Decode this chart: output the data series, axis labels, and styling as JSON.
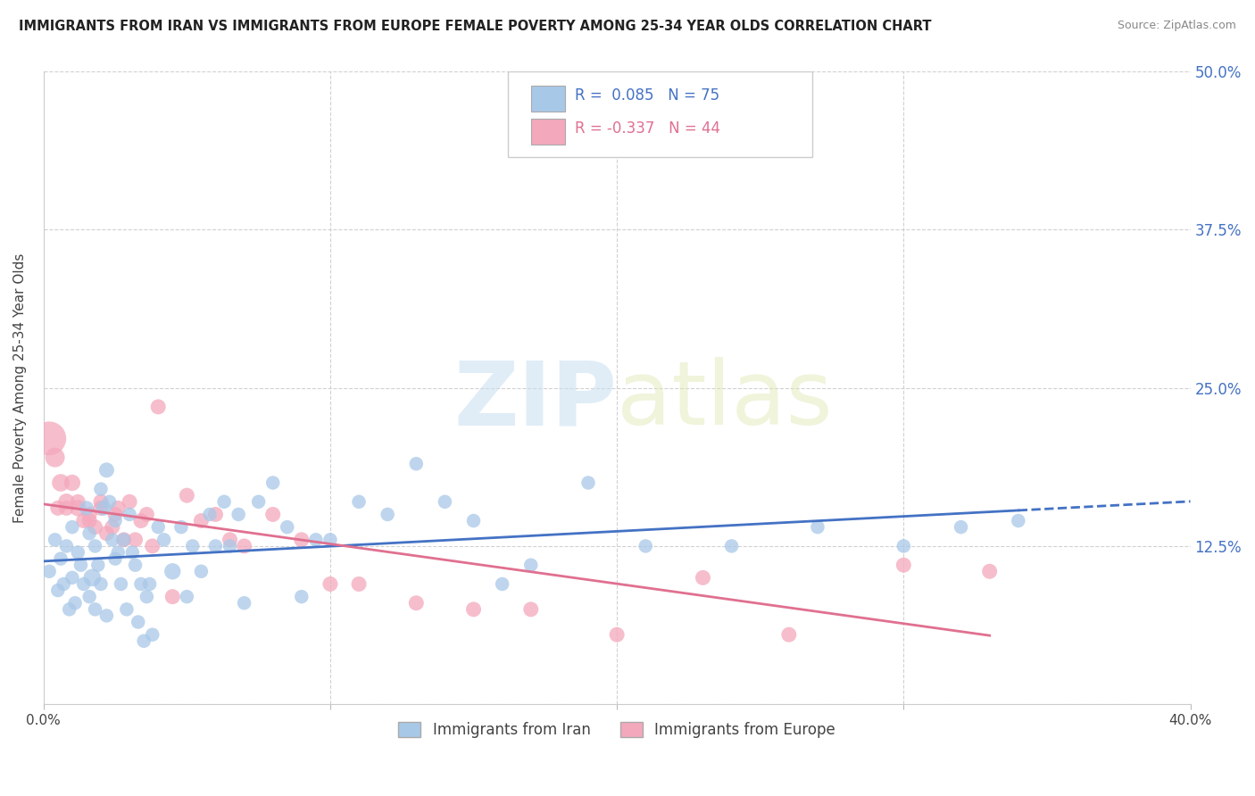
{
  "title": "IMMIGRANTS FROM IRAN VS IMMIGRANTS FROM EUROPE FEMALE POVERTY AMONG 25-34 YEAR OLDS CORRELATION CHART",
  "source": "Source: ZipAtlas.com",
  "ylabel": "Female Poverty Among 25-34 Year Olds",
  "xlim": [
    0.0,
    0.4
  ],
  "ylim": [
    0.0,
    0.5
  ],
  "yticks": [
    0.0,
    0.125,
    0.25,
    0.375,
    0.5
  ],
  "ytick_labels": [
    "",
    "12.5%",
    "25.0%",
    "37.5%",
    "50.0%"
  ],
  "xticks": [
    0.0,
    0.1,
    0.2,
    0.3,
    0.4
  ],
  "xtick_labels": [
    "0.0%",
    "",
    "",
    "",
    "40.0%"
  ],
  "iran_R": 0.085,
  "iran_N": 75,
  "europe_R": -0.337,
  "europe_N": 44,
  "iran_color": "#a8c8e8",
  "europe_color": "#f4a8bc",
  "iran_line_color": "#4472c4",
  "europe_line_color": "#e07090",
  "watermark_zip": "ZIP",
  "watermark_atlas": "atlas",
  "iran_scatter_x": [
    0.002,
    0.004,
    0.005,
    0.006,
    0.007,
    0.008,
    0.009,
    0.01,
    0.01,
    0.011,
    0.012,
    0.013,
    0.014,
    0.015,
    0.016,
    0.016,
    0.017,
    0.018,
    0.018,
    0.019,
    0.02,
    0.02,
    0.021,
    0.022,
    0.022,
    0.023,
    0.024,
    0.025,
    0.025,
    0.026,
    0.027,
    0.028,
    0.029,
    0.03,
    0.031,
    0.032,
    0.033,
    0.034,
    0.035,
    0.036,
    0.037,
    0.038,
    0.04,
    0.042,
    0.045,
    0.048,
    0.05,
    0.052,
    0.055,
    0.058,
    0.06,
    0.063,
    0.065,
    0.068,
    0.07,
    0.075,
    0.08,
    0.085,
    0.09,
    0.095,
    0.1,
    0.11,
    0.12,
    0.13,
    0.14,
    0.15,
    0.16,
    0.17,
    0.19,
    0.21,
    0.24,
    0.27,
    0.3,
    0.32,
    0.34
  ],
  "iran_scatter_y": [
    0.105,
    0.13,
    0.09,
    0.115,
    0.095,
    0.125,
    0.075,
    0.1,
    0.14,
    0.08,
    0.12,
    0.11,
    0.095,
    0.155,
    0.085,
    0.135,
    0.1,
    0.125,
    0.075,
    0.11,
    0.17,
    0.095,
    0.155,
    0.185,
    0.07,
    0.16,
    0.13,
    0.115,
    0.145,
    0.12,
    0.095,
    0.13,
    0.075,
    0.15,
    0.12,
    0.11,
    0.065,
    0.095,
    0.05,
    0.085,
    0.095,
    0.055,
    0.14,
    0.13,
    0.105,
    0.14,
    0.085,
    0.125,
    0.105,
    0.15,
    0.125,
    0.16,
    0.125,
    0.15,
    0.08,
    0.16,
    0.175,
    0.14,
    0.085,
    0.13,
    0.13,
    0.16,
    0.15,
    0.19,
    0.16,
    0.145,
    0.095,
    0.11,
    0.175,
    0.125,
    0.125,
    0.14,
    0.125,
    0.14,
    0.145
  ],
  "iran_scatter_sizes": [
    50,
    50,
    50,
    50,
    50,
    50,
    50,
    50,
    50,
    50,
    50,
    50,
    50,
    55,
    50,
    50,
    80,
    50,
    50,
    50,
    50,
    50,
    60,
    60,
    50,
    50,
    50,
    50,
    50,
    50,
    50,
    50,
    50,
    50,
    50,
    50,
    50,
    50,
    50,
    50,
    50,
    50,
    50,
    50,
    70,
    50,
    50,
    50,
    50,
    50,
    50,
    50,
    50,
    50,
    50,
    50,
    50,
    50,
    50,
    50,
    50,
    50,
    50,
    50,
    50,
    50,
    50,
    50,
    50,
    50,
    50,
    50,
    50,
    50,
    50
  ],
  "europe_scatter_x": [
    0.002,
    0.004,
    0.006,
    0.008,
    0.01,
    0.012,
    0.014,
    0.016,
    0.018,
    0.02,
    0.022,
    0.024,
    0.026,
    0.028,
    0.03,
    0.032,
    0.034,
    0.036,
    0.038,
    0.04,
    0.045,
    0.05,
    0.055,
    0.06,
    0.065,
    0.07,
    0.08,
    0.09,
    0.1,
    0.11,
    0.13,
    0.15,
    0.17,
    0.2,
    0.23,
    0.26,
    0.3,
    0.33,
    0.005,
    0.008,
    0.012,
    0.016,
    0.02,
    0.025
  ],
  "europe_scatter_y": [
    0.21,
    0.195,
    0.175,
    0.16,
    0.175,
    0.155,
    0.145,
    0.145,
    0.14,
    0.16,
    0.135,
    0.14,
    0.155,
    0.13,
    0.16,
    0.13,
    0.145,
    0.15,
    0.125,
    0.235,
    0.085,
    0.165,
    0.145,
    0.15,
    0.13,
    0.125,
    0.15,
    0.13,
    0.095,
    0.095,
    0.08,
    0.075,
    0.075,
    0.055,
    0.1,
    0.055,
    0.11,
    0.105,
    0.155,
    0.155,
    0.16,
    0.15,
    0.155,
    0.15
  ],
  "europe_scatter_sizes": [
    300,
    100,
    80,
    70,
    70,
    70,
    60,
    60,
    60,
    60,
    60,
    60,
    60,
    60,
    60,
    60,
    60,
    60,
    60,
    60,
    60,
    60,
    60,
    60,
    60,
    60,
    60,
    60,
    60,
    60,
    60,
    60,
    60,
    60,
    60,
    60,
    60,
    60,
    60,
    60,
    60,
    60,
    60,
    60
  ]
}
